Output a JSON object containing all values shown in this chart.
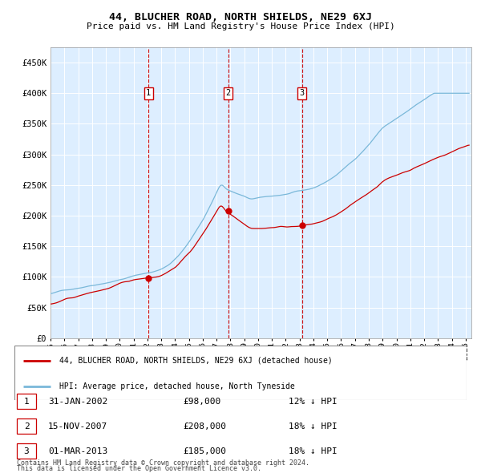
{
  "title": "44, BLUCHER ROAD, NORTH SHIELDS, NE29 6XJ",
  "subtitle": "Price paid vs. HM Land Registry's House Price Index (HPI)",
  "sale_points": [
    {
      "date": "2002-01-31",
      "price": 98000,
      "label": "1"
    },
    {
      "date": "2007-11-15",
      "price": 208000,
      "label": "2"
    },
    {
      "date": "2013-03-01",
      "price": 185000,
      "label": "3"
    }
  ],
  "table_rows": [
    {
      "num": "1",
      "date": "31-JAN-2002",
      "price": "£98,000",
      "note": "12% ↓ HPI"
    },
    {
      "num": "2",
      "date": "15-NOV-2007",
      "price": "£208,000",
      "note": "18% ↓ HPI"
    },
    {
      "num": "3",
      "date": "01-MAR-2013",
      "price": "£185,000",
      "note": "18% ↓ HPI"
    }
  ],
  "legend_house": "44, BLUCHER ROAD, NORTH SHIELDS, NE29 6XJ (detached house)",
  "legend_hpi": "HPI: Average price, detached house, North Tyneside",
  "footnote1": "Contains HM Land Registry data © Crown copyright and database right 2024.",
  "footnote2": "This data is licensed under the Open Government Licence v3.0.",
  "hpi_color": "#7ab8d9",
  "house_color": "#cc0000",
  "vline_color": "#cc0000",
  "marker_color": "#cc0000",
  "bg_color": "#ddeeff",
  "grid_color": "#ffffff",
  "label_bg": "#ffffff",
  "label_border": "#cc0000",
  "ylim": [
    0,
    475000
  ],
  "yticks": [
    0,
    50000,
    100000,
    150000,
    200000,
    250000,
    300000,
    350000,
    400000,
    450000
  ],
  "ytick_labels": [
    "£0",
    "£50K",
    "£100K",
    "£150K",
    "£200K",
    "£250K",
    "£300K",
    "£350K",
    "£400K",
    "£450K"
  ]
}
